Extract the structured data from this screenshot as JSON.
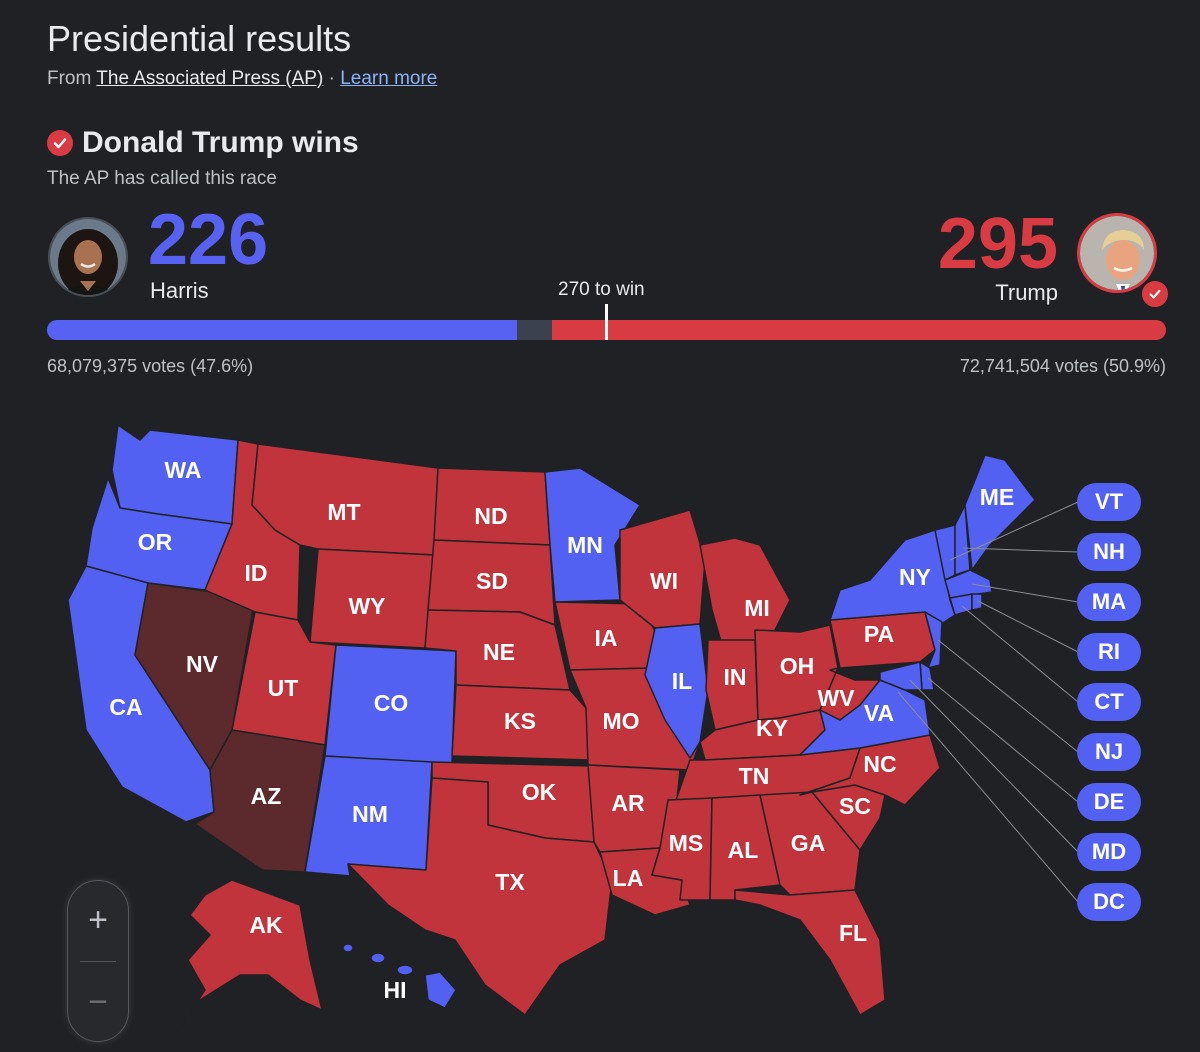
{
  "header": {
    "title": "Presidential results",
    "source_prefix": "From",
    "source_name": "The Associated Press (AP)",
    "separator": "·",
    "learn_more": "Learn more"
  },
  "winner": {
    "headline": "Donald Trump wins",
    "called_text": "The AP has called this race"
  },
  "candidates": {
    "harris": {
      "name": "Harris",
      "electoral_votes": "226",
      "votes_text": "68,079,375 votes (47.6%)",
      "color": "#5862f2",
      "avatar_icon": "harris-portrait"
    },
    "trump": {
      "name": "Trump",
      "electoral_votes": "295",
      "votes_text": "72,741,504 votes (50.9%)",
      "color": "#d93b43",
      "avatar_icon": "trump-portrait"
    }
  },
  "threshold": {
    "label": "270 to win",
    "value": 270,
    "total": 538
  },
  "bar": {
    "harris": 226,
    "uncalled": 17,
    "trump": 295,
    "uncalled_color": "#3c4150"
  },
  "map": {
    "colors": {
      "rep": "#c1343b",
      "dem": "#5261f2",
      "uncalled": "#5c2a2c"
    },
    "states": {
      "WA": "WA",
      "OR": "OR",
      "CA": "CA",
      "NV": "NV",
      "ID": "ID",
      "MT": "MT",
      "WY": "WY",
      "UT": "UT",
      "AZ": "AZ",
      "CO": "CO",
      "NM": "NM",
      "ND": "ND",
      "SD": "SD",
      "NE": "NE",
      "KS": "KS",
      "OK": "OK",
      "TX": "TX",
      "MN": "MN",
      "IA": "IA",
      "MO": "MO",
      "AR": "AR",
      "LA": "LA",
      "WI": "WI",
      "IL": "IL",
      "MI": "MI",
      "IN": "IN",
      "OH": "OH",
      "KY": "KY",
      "TN": "TN",
      "MS": "MS",
      "AL": "AL",
      "GA": "GA",
      "FL": "FL",
      "SC": "SC",
      "NC": "NC",
      "VA": "VA",
      "WV": "WV",
      "PA": "PA",
      "NY": "NY",
      "ME": "ME",
      "AK": "AK",
      "HI": "HI"
    },
    "callouts": [
      "VT",
      "NH",
      "MA",
      "RI",
      "CT",
      "NJ",
      "DE",
      "MD",
      "DC"
    ]
  },
  "zoom": {
    "in": "+",
    "out": "−"
  }
}
